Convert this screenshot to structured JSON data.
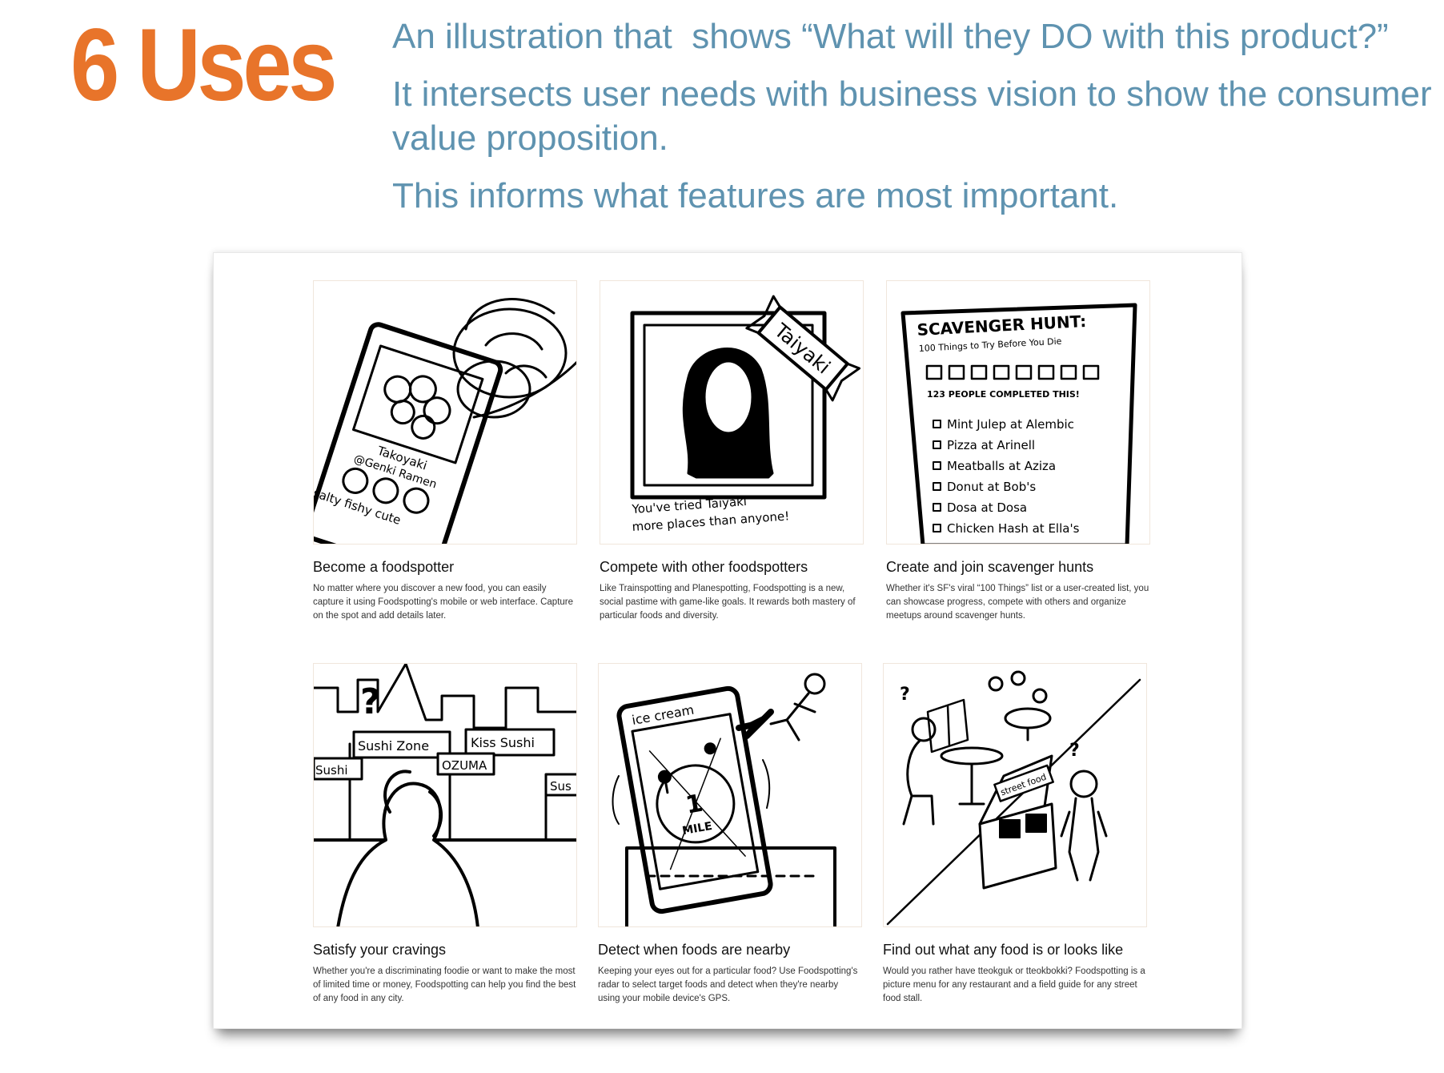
{
  "slide": {
    "title": "6 Uses",
    "intro": [
      "An illustration that  shows “What will they DO with this product?”",
      "It intersects user needs with business vision to show the consumer value proposition.",
      "This informs what features are most important."
    ],
    "colors": {
      "title": "#e8742a",
      "body_text": "#5f93b0"
    }
  },
  "uses": [
    {
      "heading": "Become a foodspotter",
      "description": "No matter where you discover a new food, you can easily capture it using Foodspotting's mobile or web interface. Capture on the spot and add details later.",
      "sketch": {
        "dish": "Takoyaki",
        "place": "@Genki Ramen",
        "tags": "salty fishy cute"
      }
    },
    {
      "heading": "Compete with other foodspotters",
      "description": "Like Trainspotting and Planespotting, Foodspotting is a new, social pastime with game-like goals. It rewards both mastery of particular foods and diversity.",
      "sketch": {
        "banner": "Taiyaki",
        "caption_line1": "You've tried Taiyaki",
        "caption_line2": "more places than anyone!"
      }
    },
    {
      "heading": "Create and join scavenger hunts",
      "description": "Whether it's SF's viral “100 Things” list or a user-created list, you can showcase progress, compete with others and organize meetups around scavenger hunts.",
      "sketch": {
        "title": "SCAVENGER HUNT:",
        "subtitle": "100 Things to Try Before You Die",
        "people": "123 PEOPLE COMPLETED THIS!",
        "items": [
          "Mint Julep at Alembic",
          "Pizza at Arinell",
          "Meatballs at Aziza",
          "Donut at Bob's",
          "Dosa at Dosa",
          "Chicken Hash at Ella's"
        ]
      }
    },
    {
      "heading": "Satisfy your cravings",
      "description": "Whether you're a discriminating foodie or want to make the most of limited time or money, Foodspotting can help you find the best of any food in any city.",
      "sketch": {
        "signs": [
          "Sushi Zone",
          "Kiss Sushi",
          "Sushi",
          "OZUMA",
          "Sus"
        ],
        "question": "?"
      }
    },
    {
      "heading": "Detect when foods are nearby",
      "description": "Keeping your eyes out for a particular food? Use Foodspotting's radar to select target foods and detect when they're nearby using your mobile device's GPS.",
      "sketch": {
        "search": "ice cream",
        "distance_value": "1",
        "distance_unit": "MILE"
      }
    },
    {
      "heading": "Find out what any food is or looks like",
      "description": "Would you rather have tteokguk or tteokbokki? Foodspotting is a picture menu for any restaurant and a field guide for any street food stall.",
      "sketch": {
        "stall_sign": "street food",
        "question": "?"
      }
    }
  ]
}
